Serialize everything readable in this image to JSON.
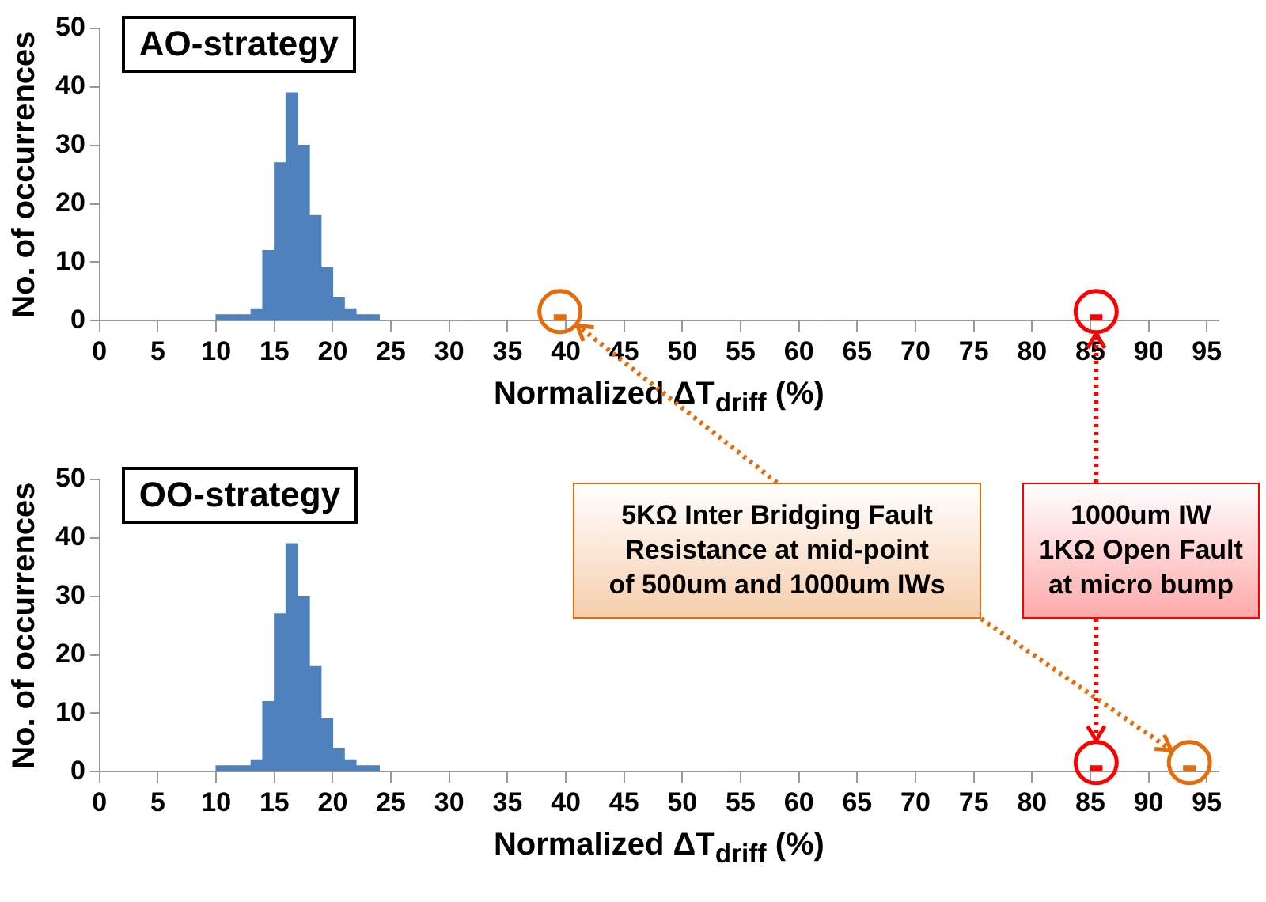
{
  "chart_data": [
    {
      "type": "histogram",
      "title": "AO-strategy",
      "xlabel": "Normalized ΔT$_{driff}$ (%)",
      "ylabel": "No. of occurrences",
      "bins": [
        10,
        11,
        12,
        13,
        14,
        15,
        16,
        17,
        18,
        19,
        20,
        21,
        22,
        23,
        24,
        39,
        40,
        85,
        86
      ],
      "values": [
        1,
        1,
        1,
        2,
        12,
        27,
        39,
        30,
        18,
        9,
        4,
        2,
        1,
        1,
        0,
        1,
        0,
        1
      ],
      "colors": [
        "#4f81bd",
        "#4f81bd",
        "#4f81bd",
        "#4f81bd",
        "#4f81bd",
        "#4f81bd",
        "#4f81bd",
        "#4f81bd",
        "#4f81bd",
        "#4f81bd",
        "#4f81bd",
        "#4f81bd",
        "#4f81bd",
        "#4f81bd",
        "#4f81bd",
        "#e46c0a",
        "#4f81bd",
        "#ff0000"
      ],
      "xlim": [
        0,
        96
      ],
      "xticks": [
        0,
        5,
        10,
        15,
        20,
        25,
        30,
        35,
        40,
        45,
        50,
        55,
        60,
        65,
        70,
        75,
        80,
        85,
        90,
        95
      ],
      "ylim": [
        0,
        50
      ],
      "yticks": [
        0,
        10,
        20,
        30,
        40,
        50
      ]
    },
    {
      "type": "histogram",
      "title": "OO-strategy",
      "xlabel": "Normalized ΔT$_{driff}$ (%)",
      "ylabel": "No. of occurrences",
      "bins": [
        10,
        11,
        12,
        13,
        14,
        15,
        16,
        17,
        18,
        19,
        20,
        21,
        22,
        23,
        24,
        85,
        86,
        93,
        94
      ],
      "values": [
        1,
        1,
        1,
        2,
        12,
        27,
        39,
        30,
        18,
        9,
        4,
        2,
        1,
        1,
        0,
        1,
        0,
        1
      ],
      "colors": [
        "#4f81bd",
        "#4f81bd",
        "#4f81bd",
        "#4f81bd",
        "#4f81bd",
        "#4f81bd",
        "#4f81bd",
        "#4f81bd",
        "#4f81bd",
        "#4f81bd",
        "#4f81bd",
        "#4f81bd",
        "#4f81bd",
        "#4f81bd",
        "#4f81bd",
        "#ff0000",
        "#4f81bd",
        "#e46c0a"
      ],
      "xlim": [
        0,
        96
      ],
      "xticks": [
        0,
        5,
        10,
        15,
        20,
        25,
        30,
        35,
        40,
        45,
        50,
        55,
        60,
        65,
        70,
        75,
        80,
        85,
        90,
        95
      ],
      "ylim": [
        0,
        50
      ],
      "yticks": [
        0,
        10,
        20,
        30,
        40,
        50
      ],
      "annotations": [
        "5KΩ Inter Bridging Fault\nResistance at mid-point\nof 500um and 1000um IWs",
        "1000um IW\n1KΩ Open Fault\nat micro bump"
      ]
    }
  ]
}
